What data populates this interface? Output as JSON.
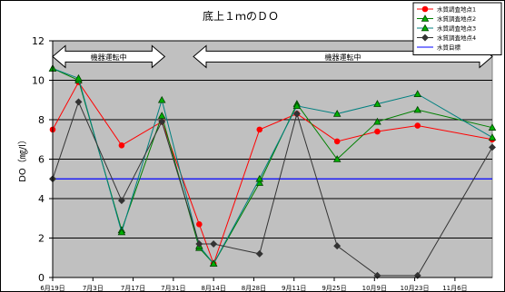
{
  "chart_data": {
    "type": "line",
    "title": "底上１ｍのＤＯ",
    "ylabel": "DO（㎎/l）",
    "xlabel": "",
    "ylim": [
      0,
      12
    ],
    "yticks": [
      0,
      2,
      4,
      6,
      8,
      10,
      12
    ],
    "x_tick_labels": [
      "6月19日",
      "7月3日",
      "7月17日",
      "7月31日",
      "8月14日",
      "8月28日",
      "9月11日",
      "9月25日",
      "10月9日",
      "10月23日",
      "11月6日"
    ],
    "x_domain": [
      "6月19日",
      "11月19日"
    ],
    "grid": "horizontal",
    "plot_background": "#c0c0c0",
    "legend_position": "top-right",
    "annotations": [
      {
        "label": "機器運転中",
        "x_start": "6月19日",
        "x_end": "7月28日",
        "y": 11.2
      },
      {
        "label": "機器運転中",
        "x_start": "8月7日",
        "x_end": "11月19日",
        "y": 11.2
      }
    ],
    "series": [
      {
        "name": "水質調査地点1",
        "color": "#ff0000",
        "marker": "circle",
        "x": [
          "6月19日",
          "6月28日",
          "7月13日",
          "7月27日",
          "8月9日",
          "8月14日",
          "8月30日",
          "9月12日",
          "9月26日",
          "10月10日",
          "10月24日",
          "11月19日"
        ],
        "y": [
          7.5,
          9.9,
          6.7,
          7.9,
          2.7,
          0.7,
          7.5,
          8.3,
          6.9,
          7.4,
          7.7,
          7.0
        ]
      },
      {
        "name": "水質調査地点2",
        "color": "#008000",
        "marker": "triangle",
        "x": [
          "6月19日",
          "6月28日",
          "7月13日",
          "7月27日",
          "8月9日",
          "8月14日",
          "8月30日",
          "9月12日",
          "9月26日",
          "10月10日",
          "10月24日",
          "11月19日"
        ],
        "y": [
          10.6,
          10.0,
          2.4,
          8.2,
          1.5,
          0.7,
          4.8,
          8.8,
          6.0,
          7.9,
          8.5,
          7.6
        ]
      },
      {
        "name": "水質調査地点3",
        "color": "#008080",
        "marker": "triangle",
        "x": [
          "6月19日",
          "6月28日",
          "7月13日",
          "7月27日",
          "8月9日",
          "8月14日",
          "8月30日",
          "9月12日",
          "9月26日",
          "10月10日",
          "10月24日",
          "11月19日"
        ],
        "y": [
          10.6,
          10.1,
          2.3,
          9.0,
          1.6,
          0.7,
          5.0,
          8.7,
          8.3,
          8.8,
          9.3,
          7.1
        ]
      },
      {
        "name": "水質調査地点4",
        "color": "#333333",
        "marker": "diamond",
        "x": [
          "6月19日",
          "6月28日",
          "7月13日",
          "7月27日",
          "8月9日",
          "8月14日",
          "8月30日",
          "9月12日",
          "9月26日",
          "10月10日",
          "10月24日",
          "11月19日"
        ],
        "y": [
          5.0,
          8.9,
          3.9,
          7.9,
          1.7,
          1.7,
          1.2,
          8.3,
          1.6,
          0.1,
          0.1,
          6.6
        ]
      },
      {
        "name": "水質目標",
        "color": "#0000ff",
        "marker": "none",
        "x": [
          "6月19日",
          "11月19日"
        ],
        "y": [
          5.0,
          5.0
        ]
      }
    ]
  }
}
